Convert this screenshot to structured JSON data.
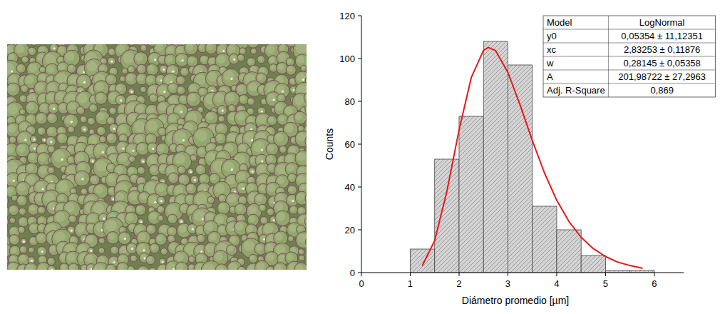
{
  "chart_data": {
    "type": "histogram",
    "xlabel": "Diámetro promedio [µm]",
    "ylabel": "Counts",
    "bins": [
      1,
      1.5,
      2,
      2.5,
      3,
      3.5,
      4,
      4.5,
      5,
      5.5,
      6
    ],
    "values": [
      11,
      53,
      73,
      108,
      97,
      31,
      20,
      8,
      1,
      1
    ],
    "color": "#d4d4d4",
    "xlim": [
      0,
      6.6
    ],
    "ylim": [
      0,
      120
    ],
    "xticks": [
      0,
      1,
      2,
      3,
      4,
      5,
      6
    ],
    "yticks": [
      0,
      20,
      40,
      60,
      80,
      100,
      120
    ],
    "series": [
      {
        "type": "line",
        "color": "#e8191c",
        "x": [
          1.25,
          1.5,
          1.75,
          2,
          2.25,
          2.5,
          2.6,
          2.75,
          3,
          3.25,
          3.5,
          3.75,
          4,
          4.25,
          4.5,
          4.75,
          5,
          5.25,
          5.5,
          5.75
        ],
        "values": [
          3.4,
          14.9,
          37.9,
          66.7,
          91.1,
          103.8,
          105.2,
          103.6,
          93.5,
          78.3,
          61.7,
          46.5,
          33.8,
          23.9,
          16.5,
          11.2,
          7.5,
          4.9,
          3.3,
          2.1
        ]
      }
    ],
    "table": [
      [
        "Model",
        "LogNormal"
      ],
      [
        "y0",
        "0,05354 ± 11,12351"
      ],
      [
        "xc",
        "2,83253 ± 0,11876"
      ],
      [
        "w",
        "0,28145 ± 0,05358"
      ],
      [
        "A",
        "201,98722 ± 27,2963"
      ],
      [
        "Adj. R-Square",
        "0,869"
      ]
    ]
  }
}
